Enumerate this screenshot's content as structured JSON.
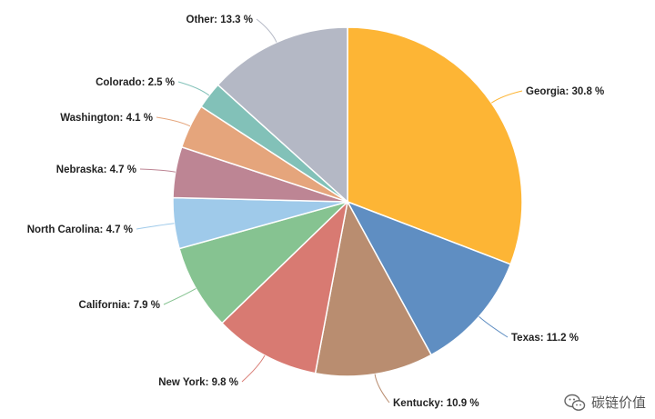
{
  "chart_data": {
    "type": "pie",
    "title": "",
    "slices": [
      {
        "label": "Georgia: 30.8 %",
        "value": 30.8,
        "color": "#FDB535"
      },
      {
        "label": "Texas: 11.2 %",
        "value": 11.2,
        "color": "#5F8EC2"
      },
      {
        "label": "Kentucky: 10.9 %",
        "value": 10.9,
        "color": "#B98D70"
      },
      {
        "label": "New York: 9.8 %",
        "value": 9.8,
        "color": "#D87A72"
      },
      {
        "label": "California: 7.9 %",
        "value": 7.9,
        "color": "#86C391"
      },
      {
        "label": "North Carolina: 4.7 %",
        "value": 4.7,
        "color": "#9FCAEA"
      },
      {
        "label": "Nebraska: 4.7 %",
        "value": 4.7,
        "color": "#BD8594"
      },
      {
        "label": "Washington: 4.1 %",
        "value": 4.1,
        "color": "#E5A57C"
      },
      {
        "label": "Colorado: 2.5 %",
        "value": 2.5,
        "color": "#82C1B8"
      },
      {
        "label": "Other: 13.3 %",
        "value": 13.3,
        "color": "#B4B8C5"
      }
    ]
  },
  "watermark": {
    "text": "碳链价值",
    "icon": "wechat-icon"
  }
}
